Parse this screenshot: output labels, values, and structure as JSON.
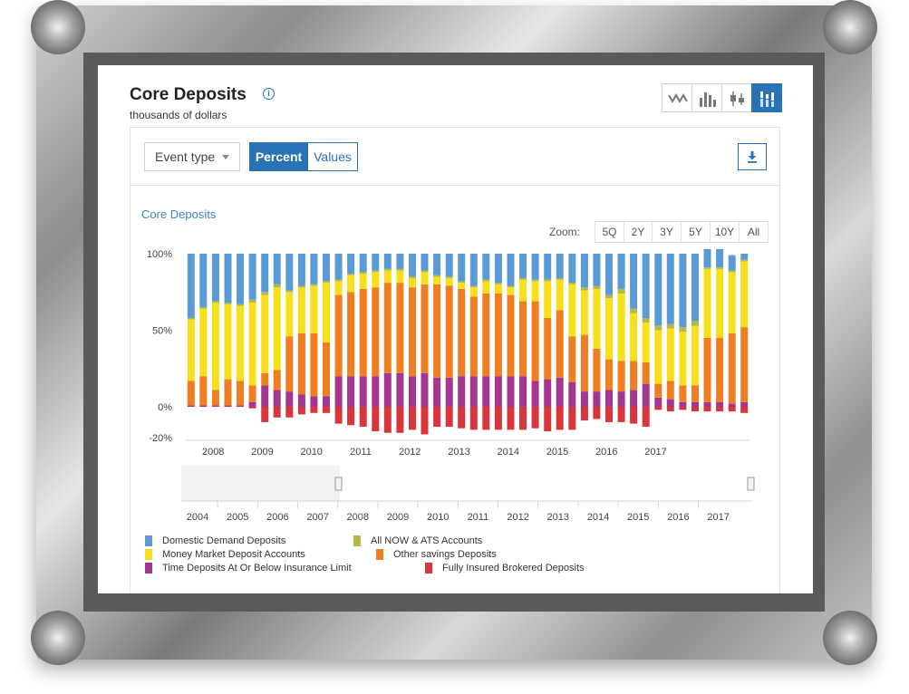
{
  "header": {
    "title": "Core Deposits",
    "subtitle": "thousands of dollars"
  },
  "chart_type_buttons": [
    {
      "icon": "line-chart-icon",
      "active": false
    },
    {
      "icon": "bar-chart-icon",
      "active": false
    },
    {
      "icon": "candlestick-chart-icon",
      "active": false
    },
    {
      "icon": "stacked-bar-chart-icon",
      "active": true
    }
  ],
  "toolbar": {
    "event_type_label": "Event type",
    "percent_label": "Percent",
    "values_label": "Values",
    "download_icon": "download-icon"
  },
  "chart_label": "Core Deposits",
  "zoom": {
    "label": "Zoom:",
    "options": [
      "5Q",
      "2Y",
      "3Y",
      "5Y",
      "10Y",
      "All"
    ]
  },
  "colors": {
    "accent": "#2a72b8",
    "domestic_demand": "#5b9bd5",
    "now_ats": "#b5b84a",
    "money_market": "#f5e01b",
    "other_savings": "#ef7d22",
    "time_deposits": "#a3368e",
    "brokered": "#d9353d"
  },
  "chart_data": {
    "type": "bar",
    "stacked": true,
    "y_unit": "percent",
    "ylim": [
      -20,
      100
    ],
    "y_ticks": [
      {
        "value": 100,
        "label": "100%"
      },
      {
        "value": 50,
        "label": "50%"
      },
      {
        "value": 0,
        "label": "0%"
      },
      {
        "value": -20,
        "label": "-20%"
      }
    ],
    "x_tick_labels": [
      "2008",
      "2009",
      "2010",
      "2011",
      "2012",
      "2013",
      "2014",
      "2015",
      "2016",
      "2017"
    ],
    "x_tick_years": [
      2008,
      2009,
      2010,
      2011,
      2012,
      2013,
      2014,
      2015,
      2016,
      2017
    ],
    "x_start": 2007.55,
    "x_step": 0.25,
    "navigator_tick_labels": [
      "2004",
      "2005",
      "2006",
      "2007",
      "2008",
      "2009",
      "2010",
      "2011",
      "2012",
      "2013",
      "2014",
      "2015",
      "2016",
      "2017"
    ],
    "series": [
      {
        "name": "Time Deposits At Or Below Insurance Limit",
        "color": "#a3368e",
        "values": [
          1,
          1,
          1,
          1,
          1,
          3,
          14,
          11,
          10,
          8,
          7,
          7,
          20,
          20,
          20,
          20,
          22,
          22,
          20,
          22,
          19,
          19,
          20,
          20,
          20,
          20,
          20,
          20,
          17,
          18,
          19,
          16,
          10,
          10,
          11,
          10,
          11,
          15,
          6,
          5,
          3,
          3,
          3,
          3,
          2,
          3
        ]
      },
      {
        "name": "Other savings Deposits",
        "color": "#ef7d22",
        "values": [
          16,
          19,
          10,
          17,
          16,
          11,
          8,
          13,
          36,
          40,
          41,
          35,
          53,
          55,
          57,
          58,
          59,
          59,
          58,
          58,
          61,
          60,
          57,
          52,
          54,
          54,
          53,
          49,
          52,
          40,
          44,
          30,
          37,
          28,
          20,
          20,
          19,
          14,
          9,
          12,
          11,
          11,
          42,
          42,
          46,
          49
        ]
      },
      {
        "name": "Money Market Deposit Accounts",
        "color": "#f5e01b",
        "values": [
          40,
          44,
          57,
          49,
          49,
          54,
          51,
          54,
          29,
          30,
          31,
          39,
          9,
          11,
          10,
          10,
          8,
          8,
          6,
          8,
          5,
          5,
          4,
          6,
          8,
          6,
          5,
          14,
          13,
          24,
          20,
          34,
          29,
          39,
          40,
          44,
          31,
          26,
          35,
          34,
          35,
          39,
          45,
          45,
          40,
          43
        ]
      },
      {
        "name": "All NOW & ATS Accounts",
        "color": "#b5b84a",
        "values": [
          1,
          1,
          1,
          1,
          1,
          2,
          2,
          2,
          1,
          1,
          1,
          1,
          1,
          1,
          1,
          1,
          1,
          1,
          1,
          1,
          1,
          1,
          1,
          1,
          1,
          1,
          1,
          1,
          1,
          1,
          1,
          1,
          2,
          2,
          2,
          3,
          3,
          3,
          3,
          3,
          3,
          3,
          1,
          1,
          1,
          1
        ]
      },
      {
        "name": "Domestic Demand Deposits",
        "color": "#5b9bd5",
        "values": [
          42,
          35,
          31,
          32,
          33,
          30,
          25,
          20,
          24,
          21,
          20,
          18,
          17,
          13,
          12,
          11,
          10,
          10,
          15,
          11,
          14,
          15,
          18,
          21,
          17,
          19,
          21,
          16,
          17,
          17,
          16,
          19,
          22,
          21,
          27,
          23,
          36,
          42,
          47,
          46,
          48,
          44,
          12,
          12,
          10,
          4
        ]
      },
      {
        "name": "Fully Insured Brokered Deposits",
        "color": "#d9353d",
        "values": [
          0,
          0,
          0,
          0,
          0,
          -1,
          -10,
          -7,
          -7,
          -5,
          -4,
          -4,
          -11,
          -12,
          -13,
          -16,
          -17,
          -17,
          -15,
          -18,
          -13,
          -13,
          -14,
          -15,
          -15,
          -15,
          -15,
          -15,
          -14,
          -16,
          -15,
          -15,
          -9,
          -8,
          -10,
          -10,
          -11,
          -13,
          -2,
          -3,
          -2,
          -3,
          -3,
          -3,
          -3,
          -4
        ]
      }
    ]
  }
}
